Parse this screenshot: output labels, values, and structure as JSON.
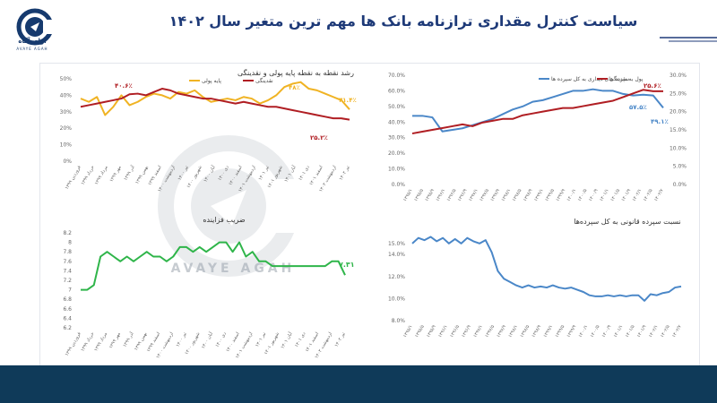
{
  "header": {
    "title": "سیاست کنترل مقداری ترازنامه بانک ها مهم ترین متغیر سال ۱۴۰۲",
    "brand": "آوای آگاه",
    "brand_latin": "AVAYE AGAH"
  },
  "watermark": {
    "text": "AVAYE AGAH"
  },
  "colors": {
    "accent": "#1e3a78",
    "footer": "#0f3a59",
    "red": "#b01e23",
    "gold": "#f0b323",
    "blue": "#4a87c8",
    "green": "#2fb54a"
  },
  "chart_data": [
    {
      "id": "growth",
      "type": "line",
      "title": "رشد نقطه به نقطه پایه پولی و نقدینگی",
      "y_ticks": [
        "0%",
        "10%",
        "20%",
        "30%",
        "40%",
        "50%"
      ],
      "ylim": [
        0,
        50
      ],
      "x_labels": [
        "فروردین ۱۳۹۹",
        "خرداد ۱۳۹۹",
        "مرداد ۱۳۹۹",
        "مهر ۱۳۹۹",
        "آذر ۱۳۹۹",
        "بهمن ۱۳۹۹",
        "اسفند ۱۳۹۹",
        "اردیبهشت ۱۴۰۰",
        "تیر ۱۴۰۰",
        "شهریور ۱۴۰۰",
        "آبان ۱۴۰۰",
        "دی ۱۴۰۰",
        "اسفند ۱۴۰۰",
        "اردیبهشت ۱۴۰۱",
        "تیر ۱۴۰۱",
        "شهریور ۱۴۰۱",
        "آبان ۱۴۰۱",
        "دی ۱۴۰۱",
        "اسفند ۱۴۰۱",
        "اردیبهشت ۱۴۰۲",
        "تیر ۱۴۰۲"
      ],
      "legend": [
        "پایه پولی",
        "نقدینگی"
      ],
      "series": [
        {
          "name": "نقدینگی",
          "color": "#b01e23",
          "values": [
            33,
            34,
            35,
            36,
            37,
            38,
            40.6,
            41,
            40,
            42,
            44,
            43,
            41,
            40,
            39,
            38,
            38,
            37,
            36,
            35,
            36,
            35,
            34,
            33,
            33,
            32,
            31,
            30,
            29,
            28,
            27,
            26,
            26,
            25.2
          ]
        },
        {
          "name": "پایه پولی",
          "color": "#f0b323",
          "values": [
            38,
            36,
            39,
            28,
            33,
            40,
            34,
            36,
            39,
            41,
            40,
            38,
            42,
            41,
            43,
            39,
            36,
            37,
            38,
            37,
            39,
            38,
            35,
            37,
            40,
            45,
            47,
            48,
            44,
            43,
            41,
            39,
            37,
            31.4
          ]
        }
      ],
      "annotations": [
        "۴۰.۶٪",
        "۴۸٪",
        "۳۱.۴٪",
        "۲۵.۲٪"
      ]
    },
    {
      "id": "ratio_money",
      "type": "line",
      "legend": [
        "پول به نقدینگی",
        "سپرده های دیداری به کل سپرده ها"
      ],
      "y_ticks_left": [
        "0.0%",
        "10.0%",
        "20.0%",
        "30.0%",
        "40.0%",
        "50.0%",
        "60.0%",
        "70.0%"
      ],
      "y_ticks_right": [
        "0.0%",
        "5.0%",
        "10.0%",
        "15.0%",
        "20.0%",
        "25.0%",
        "30.0%"
      ],
      "x_labels": [
        "۱۳۹۵/۱",
        "۱۳۹۵/۵",
        "۱۳۹۵/۹",
        "۱۳۹۶/۱",
        "۱۳۹۶/۵",
        "۱۳۹۶/۹",
        "۱۳۹۷/۱",
        "۱۳۹۷/۵",
        "۱۳۹۷/۹",
        "۱۳۹۸/۱",
        "۱۳۹۸/۵",
        "۱۳۹۸/۹",
        "۱۳۹۹/۱",
        "۱۳۹۹/۵",
        "۱۳۹۹/۹",
        "۱۴۰۰/۱",
        "۱۴۰۰/۵",
        "۱۴۰۰/۹",
        "۱۴۰۱/۱",
        "۱۴۰۱/۵",
        "۱۴۰۱/۹",
        "۱۴۰۲/۱",
        "۱۴۰۲/۵",
        "۱۴۰۲/۷"
      ],
      "series": [
        {
          "name": "سپرده های دیداری به کل سپرده ها",
          "color": "#4a87c8",
          "values": [
            44,
            44,
            43,
            34,
            35,
            36,
            38,
            40,
            42,
            45,
            48,
            50,
            53,
            54,
            56,
            58,
            60,
            60,
            61,
            60,
            60,
            58,
            57,
            57.5,
            57,
            49.1
          ]
        },
        {
          "name": "پول به نقدینگی",
          "color": "#b01e23",
          "values": [
            14,
            14.5,
            15,
            15.5,
            16,
            16.5,
            16,
            17,
            17.5,
            18,
            18,
            19,
            19.5,
            20,
            20.5,
            21,
            21,
            21.5,
            22,
            22.5,
            23,
            24,
            25,
            26,
            25.6,
            25.6
          ]
        }
      ],
      "annotations": [
        "۲۵.۶٪",
        "۵۷.۵٪",
        "۴۹.۱٪"
      ]
    },
    {
      "id": "multiplier",
      "type": "line",
      "title": "ضریب فزاینده",
      "y_ticks": [
        "6.2",
        "6.4",
        "6.6",
        "6.8",
        "7",
        "7.2",
        "7.4",
        "7.6",
        "7.8",
        "8",
        "8.2"
      ],
      "ylim": [
        6.2,
        8.2
      ],
      "x_labels": [
        "فروردین ۱۳۹۹",
        "خرداد ۱۳۹۹",
        "مرداد ۱۳۹۹",
        "مهر ۱۳۹۹",
        "آذر ۱۳۹۹",
        "بهمن ۱۳۹۹",
        "اسفند ۱۳۹۹",
        "اردیبهشت ۱۴۰۰",
        "تیر ۱۴۰۰",
        "شهریور ۱۴۰۰",
        "آبان ۱۴۰۰",
        "دی ۱۴۰۰",
        "اسفند ۱۴۰۰",
        "اردیبهشت ۱۴۰۱",
        "تیر ۱۴۰۱",
        "شهریور ۱۴۰۱",
        "آبان ۱۴۰۱",
        "دی ۱۴۰۱",
        "اسفند ۱۴۰۱",
        "اردیبهشت ۱۴۰۲",
        "تیر ۱۴۰۲"
      ],
      "series": [
        {
          "name": "ضریب فزاینده",
          "color": "#2fb54a",
          "values": [
            7,
            7,
            7.1,
            7.7,
            7.8,
            7.7,
            7.6,
            7.7,
            7.6,
            7.7,
            7.8,
            7.7,
            7.7,
            7.6,
            7.7,
            7.9,
            7.9,
            7.8,
            7.9,
            7.8,
            7.9,
            8,
            8,
            7.8,
            8,
            7.7,
            7.8,
            7.6,
            7.6,
            7.5,
            7.5,
            7.5,
            7.5,
            7.5,
            7.5,
            7.5,
            7.5,
            7.5,
            7.6,
            7.6,
            7.31
          ]
        }
      ],
      "annotations": [
        "۷.۳۱"
      ]
    },
    {
      "id": "reserve",
      "type": "line",
      "title": "نسبت سپرده قانونی به کل سپرده‌ها",
      "y_ticks": [
        "8.0%",
        "10.0%",
        "12.0%",
        "14.0%",
        "15.0%"
      ],
      "x_labels": [
        "۱۳۹۵/۱",
        "۱۳۹۵/۵",
        "۱۳۹۵/۹",
        "۱۳۹۶/۱",
        "۱۳۹۶/۵",
        "۱۳۹۶/۹",
        "۱۳۹۷/۱",
        "۱۳۹۷/۵",
        "۱۳۹۷/۹",
        "۱۳۹۸/۱",
        "۱۳۹۸/۵",
        "۱۳۹۸/۹",
        "۱۳۹۹/۱",
        "۱۳۹۹/۵",
        "۱۳۹۹/۹",
        "۱۴۰۰/۱",
        "۱۴۰۰/۵",
        "۱۴۰۰/۹",
        "۱۴۰۱/۱",
        "۱۴۰۱/۵",
        "۱۴۰۱/۹",
        "۱۴۰۲/۱",
        "۱۴۰۲/۵",
        "۱۴۰۲/۷"
      ],
      "series": [
        {
          "name": "نسبت سپرده قانونی",
          "color": "#4a87c8",
          "values": [
            15,
            15.5,
            15.3,
            15.6,
            15.2,
            15.5,
            15,
            15.4,
            15,
            15.5,
            15.2,
            15,
            15.3,
            14.2,
            12.5,
            11.8,
            11.5,
            11.2,
            11,
            11.2,
            11,
            11.1,
            11,
            11.2,
            11,
            10.9,
            11,
            10.8,
            10.6,
            10.3,
            10.2,
            10.2,
            10.3,
            10.2,
            10.3,
            10.2,
            10.3,
            10.3,
            9.8,
            10.4,
            10.3,
            10.5,
            10.6,
            11,
            11.1
          ]
        }
      ]
    }
  ]
}
